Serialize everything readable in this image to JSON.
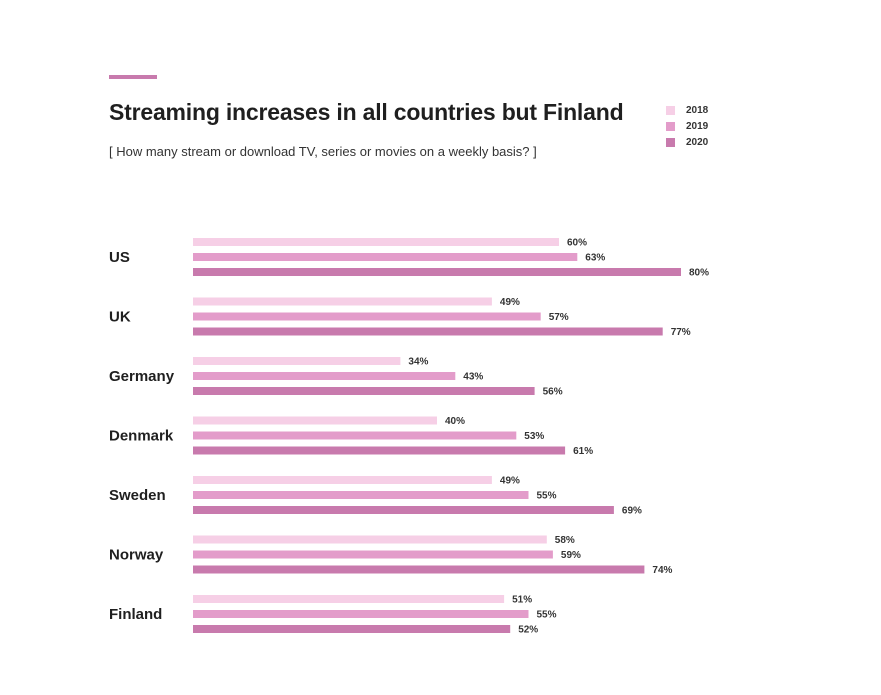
{
  "header": {
    "title": "Streaming increases in all countries but Finland",
    "subtitle": "[ How many stream or download TV, series or movies on a weekly basis? ]"
  },
  "colors": {
    "accent": "#c87aad",
    "series_2018": "#f6cfe6",
    "series_2019": "#e39cca",
    "series_2020": "#c87aad"
  },
  "chart_data": {
    "type": "bar",
    "orientation": "horizontal",
    "title": "Streaming increases in all countries but Finland",
    "subtitle": "[ How many stream or download TV, series or movies on a weekly basis? ]",
    "unit": "%",
    "categories": [
      "US",
      "UK",
      "Germany",
      "Denmark",
      "Sweden",
      "Norway",
      "Finland"
    ],
    "series": [
      {
        "name": "2018",
        "color": "#f6cfe6",
        "values": [
          60,
          49,
          34,
          40,
          49,
          58,
          51
        ]
      },
      {
        "name": "2019",
        "color": "#e39cca",
        "values": [
          63,
          57,
          43,
          53,
          55,
          59,
          55
        ]
      },
      {
        "name": "2020",
        "color": "#c87aad",
        "values": [
          80,
          77,
          56,
          61,
          69,
          74,
          52
        ]
      }
    ],
    "xlim": [
      0,
      100
    ],
    "grid": false,
    "legend_position": "top-right"
  }
}
